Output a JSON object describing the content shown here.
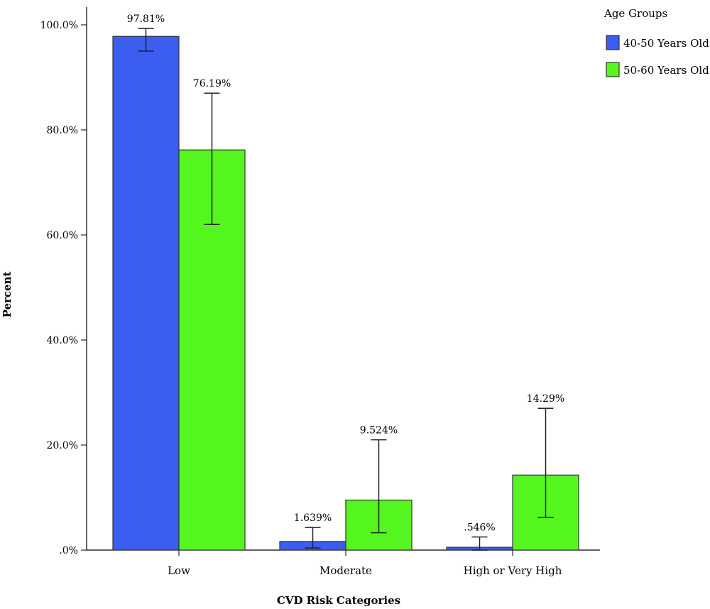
{
  "chart_data": {
    "type": "bar",
    "xlabel": "CVD Risk Categories",
    "ylabel": "Percent",
    "ylim": [
      0,
      100
    ],
    "yticks": [
      0,
      20,
      40,
      60,
      80,
      100
    ],
    "ytick_labels": [
      ".0%",
      "20.0%",
      "40.0%",
      "60.0%",
      "80.0%",
      "100.0%"
    ],
    "categories": [
      "Low",
      "Moderate",
      "High or Very High"
    ],
    "legend": {
      "title": "Age Groups",
      "placement": "top-right"
    },
    "series": [
      {
        "name": "40-50 Years Old",
        "color": "#3b5ef0",
        "values": [
          97.81,
          1.639,
          0.546
        ],
        "labels": [
          "97.81%",
          "1.639%",
          ".546%"
        ],
        "error_low": [
          95.0,
          0.4,
          0.0
        ],
        "error_high": [
          99.3,
          4.3,
          2.5
        ]
      },
      {
        "name": "50-60 Years Old",
        "color": "#55f51f",
        "values": [
          76.19,
          9.524,
          14.29
        ],
        "labels": [
          "76.19%",
          "9.524%",
          "14.29%"
        ],
        "error_low": [
          62.0,
          3.3,
          6.2
        ],
        "error_high": [
          87.0,
          21.0,
          27.0
        ]
      }
    ],
    "grid": false
  }
}
